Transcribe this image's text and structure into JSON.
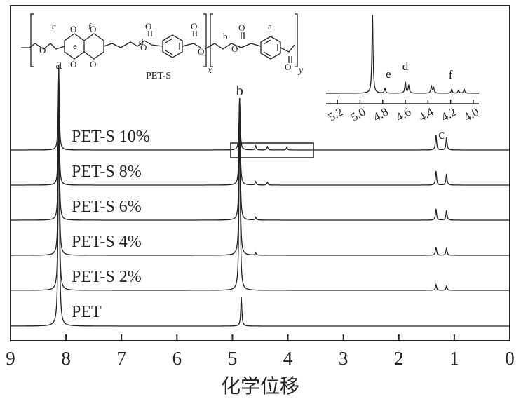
{
  "chart_data": {
    "type": "line",
    "title": "",
    "xlabel": "化学位移",
    "ylabel": "",
    "x_reversed": true,
    "xlim": [
      0,
      9
    ],
    "xticks": [
      9,
      8,
      7,
      6,
      5,
      4,
      3,
      2,
      1,
      0
    ],
    "peak_labels": [
      {
        "text": "a",
        "x": 8.13
      },
      {
        "text": "b",
        "x": 4.87
      },
      {
        "text": "c",
        "x": 1.23
      }
    ],
    "series": [
      {
        "name": "PET-S 10%",
        "peaks": [
          {
            "x": 8.13,
            "h": 1.0
          },
          {
            "x": 4.87,
            "h": 0.72
          },
          {
            "x": 4.58,
            "h": 0.03
          },
          {
            "x": 4.37,
            "h": 0.025
          },
          {
            "x": 4.02,
            "h": 0.02
          },
          {
            "x": 1.33,
            "h": 0.11
          },
          {
            "x": 1.14,
            "h": 0.09
          }
        ]
      },
      {
        "name": "PET-S 8%",
        "peaks": [
          {
            "x": 8.13,
            "h": 1.0
          },
          {
            "x": 4.87,
            "h": 0.78
          },
          {
            "x": 4.58,
            "h": 0.025
          },
          {
            "x": 4.37,
            "h": 0.02
          },
          {
            "x": 1.33,
            "h": 0.1
          },
          {
            "x": 1.14,
            "h": 0.08
          }
        ]
      },
      {
        "name": "PET-S 6%",
        "peaks": [
          {
            "x": 8.13,
            "h": 1.0
          },
          {
            "x": 4.87,
            "h": 0.85
          },
          {
            "x": 4.58,
            "h": 0.02
          },
          {
            "x": 1.33,
            "h": 0.08
          },
          {
            "x": 1.14,
            "h": 0.07
          }
        ]
      },
      {
        "name": "PET-S 4%",
        "peaks": [
          {
            "x": 8.13,
            "h": 1.0
          },
          {
            "x": 4.87,
            "h": 0.9
          },
          {
            "x": 4.58,
            "h": 0.015
          },
          {
            "x": 1.33,
            "h": 0.06
          },
          {
            "x": 1.14,
            "h": 0.05
          }
        ]
      },
      {
        "name": "PET-S 2%",
        "peaks": [
          {
            "x": 8.13,
            "h": 1.0
          },
          {
            "x": 4.87,
            "h": 0.95
          },
          {
            "x": 1.33,
            "h": 0.04
          },
          {
            "x": 1.14,
            "h": 0.03
          }
        ]
      },
      {
        "name": "PET",
        "peaks": [
          {
            "x": 8.13,
            "h": 0.5
          },
          {
            "x": 4.84,
            "h": 0.4
          }
        ]
      }
    ],
    "inset": {
      "xlim": [
        3.95,
        5.3
      ],
      "x_reversed": true,
      "xticks": [
        5.2,
        5.0,
        4.8,
        4.6,
        4.4,
        4.2,
        4.0
      ],
      "peak_labels": [
        {
          "text": "e",
          "x": 4.75
        },
        {
          "text": "d",
          "x": 4.6
        },
        {
          "text": "f",
          "x": 4.2
        }
      ],
      "peaks": [
        {
          "x": 4.89,
          "h": 1.0
        },
        {
          "x": 4.78,
          "h": 0.06
        },
        {
          "x": 4.6,
          "h": 0.14
        },
        {
          "x": 4.57,
          "h": 0.1
        },
        {
          "x": 4.37,
          "h": 0.09
        },
        {
          "x": 4.35,
          "h": 0.07
        },
        {
          "x": 4.19,
          "h": 0.05
        },
        {
          "x": 4.13,
          "h": 0.04
        },
        {
          "x": 4.08,
          "h": 0.05
        }
      ]
    },
    "structure": {
      "name": "PET-S",
      "atom_labels": [
        "c",
        "e",
        "f",
        "d",
        "b",
        "a"
      ],
      "subscripts": [
        "x",
        "y"
      ]
    }
  }
}
